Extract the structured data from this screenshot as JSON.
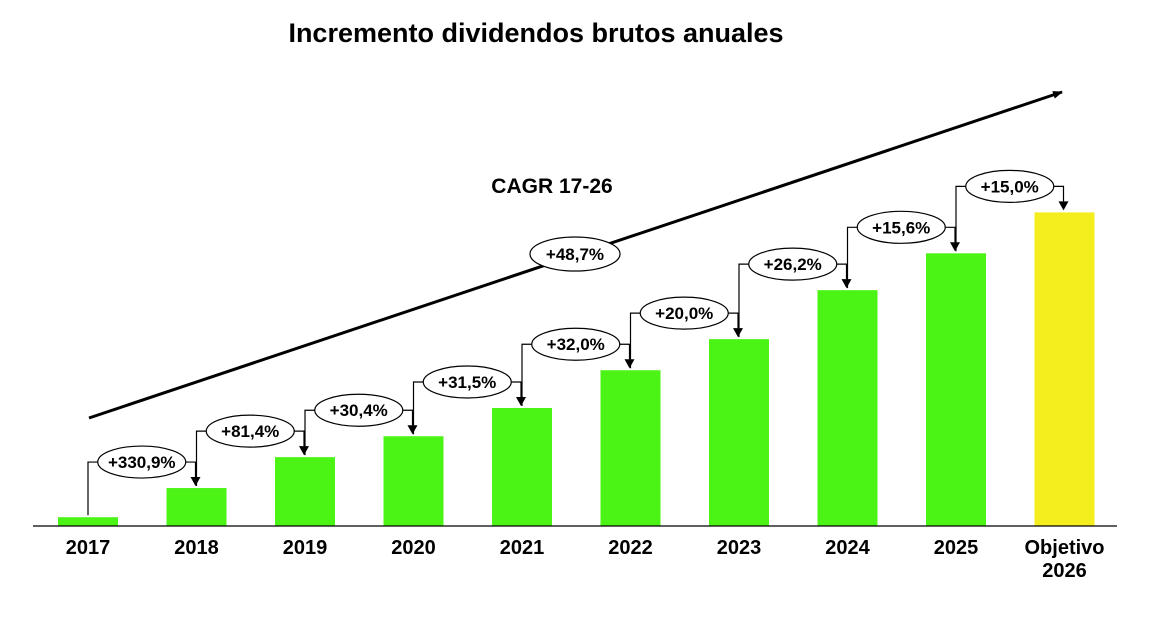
{
  "chart_data": {
    "type": "bar",
    "title": "Incremento dividendos brutos anuales",
    "xlabel": "",
    "ylabel": "",
    "categories": [
      "2017",
      "2018",
      "2019",
      "2020",
      "2021",
      "2022",
      "2023",
      "2024",
      "2025",
      "Objetivo 2026"
    ],
    "values": [
      8.0,
      34.5,
      62.6,
      81.6,
      107.3,
      141.6,
      169.9,
      214.4,
      247.9,
      285.1
    ],
    "ylim": [
      0,
      300
    ],
    "bar_colors": [
      "#4cf416",
      "#4cf416",
      "#4cf416",
      "#4cf416",
      "#4cf416",
      "#4cf416",
      "#4cf416",
      "#4cf416",
      "#4cf416",
      "#f5ee1e"
    ],
    "changes": [
      "+330,9%",
      "+81,4%",
      "+30,4%",
      "+31,5%",
      "+32,0%",
      "+20,0%",
      "+26,2%",
      "+15,6%",
      "+15,0%"
    ],
    "cagr": {
      "label": "CAGR 17-26",
      "value": "+48,7%"
    },
    "grid": false,
    "legend": "none"
  }
}
